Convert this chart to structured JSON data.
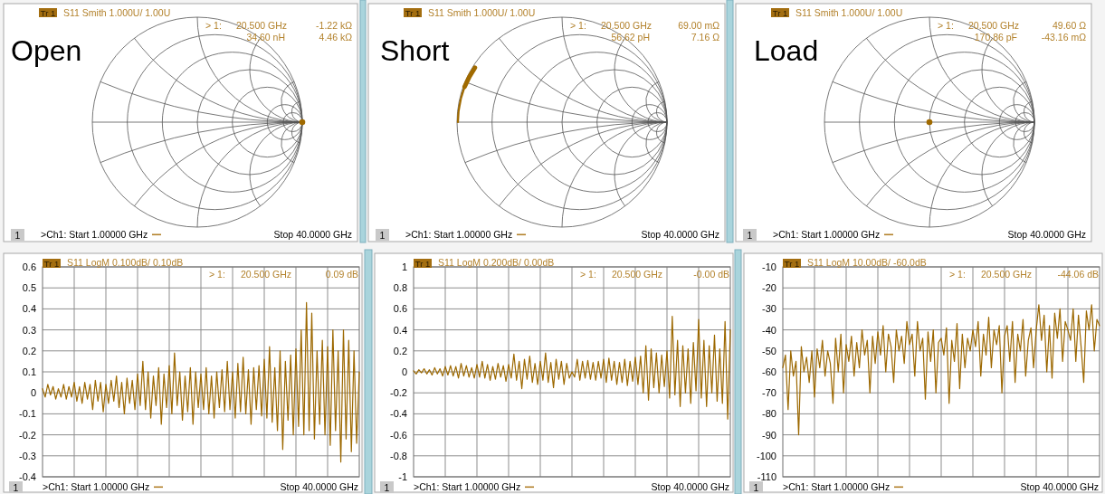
{
  "chart_data": [
    {
      "type": "other",
      "title": "Open",
      "annotations": [
        "Tr 1",
        "S11 Smith 1.000U/ 1.00U",
        "> 1:",
        "20.500 GHz",
        "-1.22 kΩ",
        "34.60 nH",
        "4.46 kΩ",
        "1",
        ">Ch1: Start 1.00000 GHz",
        "Stop 40.0000 GHz"
      ]
    },
    {
      "type": "other",
      "title": "Short",
      "annotations": [
        "Tr 1",
        "S11 Smith 1.000U/ 1.00U",
        "> 1:",
        "20.500 GHz",
        "69.00 mΩ",
        "56.62 pH",
        "7.16 Ω",
        "1",
        ">Ch1: Start 1.00000 GHz",
        "Stop 40.0000 GHz"
      ]
    },
    {
      "type": "other",
      "title": "Load",
      "annotations": [
        "Tr 1",
        "S11 Smith 1.000U/ 1.00U",
        "> 1:",
        "20.500 GHz",
        "49.60 Ω",
        "170.86 pF",
        "-43.16 mΩ",
        "1",
        ">Ch1: Start 1.00000 GHz",
        "Stop 40.0000 GHz"
      ]
    },
    {
      "type": "line",
      "annotations": [
        "Tr 1",
        "S11 LogM 0.100dB/ 0.10dB",
        "> 1:",
        "20.500 GHz",
        "0.09 dB",
        "1",
        ">Ch1: Start 1.00000 GHz",
        "Stop 40.0000 GHz"
      ],
      "categories": [
        null,
        null,
        null,
        null,
        null,
        null,
        null,
        null,
        null,
        null,
        null,
        null,
        null,
        null,
        null,
        null,
        null,
        null,
        null,
        null,
        null,
        null,
        null,
        null,
        null,
        null,
        null,
        null,
        null,
        null,
        null,
        null,
        null,
        null,
        null,
        null,
        null,
        null,
        null,
        null,
        null,
        null,
        null,
        null,
        null,
        null,
        null,
        null,
        null,
        null,
        null,
        null,
        null,
        null,
        null,
        null,
        null,
        null,
        null,
        null,
        null,
        null,
        null,
        null,
        null,
        null,
        null,
        null,
        null,
        null,
        null,
        null,
        null,
        null,
        null,
        null,
        null,
        null,
        null,
        null,
        null,
        null,
        null,
        null,
        null,
        null,
        null,
        null,
        null,
        null,
        null,
        null,
        null,
        null,
        null,
        null,
        null,
        null,
        null,
        null,
        null,
        null,
        null,
        null,
        null,
        null,
        null,
        null,
        null,
        null,
        null,
        null,
        null,
        null,
        null,
        null,
        null,
        null,
        null,
        null,
        null
      ],
      "series": [
        {
          "color": "#9c6800",
          "values": [
            0.02,
            -0.02,
            0.04,
            -0.01,
            0.03,
            -0.03,
            0.02,
            -0.02,
            0.04,
            -0.03,
            0.03,
            -0.02,
            0.05,
            -0.04,
            0.03,
            -0.05,
            0.05,
            -0.03,
            0.04,
            -0.08,
            0.06,
            -0.04,
            0.05,
            -0.09,
            0.04,
            -0.05,
            0.06,
            -0.04,
            0.08,
            -0.07,
            0.05,
            -0.1,
            0.07,
            -0.05,
            0.06,
            -0.08,
            0.09,
            -0.06,
            0.15,
            -0.08,
            0.1,
            -0.12,
            0.08,
            -0.06,
            0.12,
            -0.15,
            0.09,
            -0.07,
            0.13,
            -0.1,
            0.19,
            -0.06,
            0.1,
            -0.13,
            0.08,
            -0.09,
            0.12,
            -0.15,
            0.1,
            -0.07,
            0.09,
            -0.08,
            0.12,
            -0.1,
            0.08,
            -0.12,
            0.1,
            -0.07,
            0.11,
            -0.09,
            0.15,
            -0.08,
            0.1,
            -0.12,
            0.14,
            -0.09,
            0.17,
            -0.1,
            0.11,
            -0.15,
            0.12,
            -0.08,
            0.13,
            -0.11,
            0.16,
            -0.12,
            0.22,
            -0.14,
            0.12,
            -0.18,
            0.2,
            -0.27,
            0.15,
            -0.13,
            0.18,
            -0.2,
            0.21,
            -0.16,
            0.3,
            -0.2,
            0.43,
            -0.18,
            0.38,
            -0.22,
            0.2,
            -0.15,
            0.25,
            -0.2,
            0.22,
            -0.25,
            0.3,
            -0.18,
            0.2,
            -0.33,
            0.3,
            -0.22,
            0.25,
            -0.28,
            0.2,
            -0.24,
            0.1
          ]
        }
      ],
      "ylim": [
        -0.4,
        0.6
      ],
      "yticks": [
        0.6,
        0.5,
        0.4,
        0.3,
        0.2,
        0.1,
        0,
        -0.1,
        -0.2,
        -0.3,
        -0.4
      ],
      "grid": true,
      "tick_labels": "y"
    },
    {
      "type": "line",
      "annotations": [
        "Tr 1",
        "S11 LogM 0.200dB/ 0.00dB",
        "> 1:",
        "20.500 GHz",
        "-0.00 dB",
        "1",
        ">Ch1: Start 1.00000 GHz",
        "Stop 40.0000 GHz"
      ],
      "categories": [
        null,
        null,
        null,
        null,
        null,
        null,
        null,
        null,
        null,
        null,
        null,
        null,
        null,
        null,
        null,
        null,
        null,
        null,
        null,
        null,
        null,
        null,
        null,
        null,
        null,
        null,
        null,
        null,
        null,
        null,
        null,
        null,
        null,
        null,
        null,
        null,
        null,
        null,
        null,
        null,
        null,
        null,
        null,
        null,
        null,
        null,
        null,
        null,
        null,
        null,
        null,
        null,
        null,
        null,
        null,
        null,
        null,
        null,
        null,
        null,
        null,
        null,
        null,
        null,
        null,
        null,
        null,
        null,
        null,
        null,
        null,
        null,
        null,
        null,
        null,
        null,
        null,
        null,
        null,
        null,
        null,
        null,
        null,
        null,
        null,
        null,
        null,
        null,
        null,
        null,
        null,
        null,
        null,
        null,
        null,
        null,
        null,
        null,
        null,
        null,
        null,
        null,
        null,
        null,
        null,
        null,
        null,
        null,
        null,
        null,
        null,
        null,
        null,
        null,
        null,
        null,
        null,
        null,
        null,
        null,
        null
      ],
      "series": [
        {
          "color": "#9c6800",
          "values": [
            0.01,
            -0.02,
            0.02,
            -0.01,
            0.03,
            -0.02,
            0.02,
            -0.03,
            0.04,
            -0.02,
            0.03,
            -0.04,
            0.05,
            -0.03,
            0.06,
            -0.04,
            0.05,
            -0.06,
            0.08,
            -0.04,
            0.06,
            -0.05,
            0.04,
            -0.06,
            0.07,
            -0.05,
            0.1,
            -0.06,
            0.07,
            -0.08,
            0.05,
            -0.07,
            0.08,
            -0.05,
            0.06,
            -0.09,
            0.07,
            -0.06,
            0.17,
            -0.08,
            0.1,
            -0.16,
            0.12,
            -0.07,
            0.15,
            -0.1,
            0.08,
            -0.12,
            0.1,
            -0.08,
            0.18,
            -0.1,
            0.09,
            -0.15,
            0.12,
            -0.07,
            0.1,
            -0.12,
            0.08,
            -0.06,
            0,
            -0.05,
            0.12,
            -0.08,
            0.1,
            -0.06,
            0.11,
            -0.07,
            0.09,
            -0.08,
            0.1,
            -0.06,
            0.12,
            -0.1,
            0.13,
            -0.08,
            0.1,
            -0.12,
            0.09,
            -0.1,
            0.12,
            -0.13,
            0.1,
            -0.09,
            0.14,
            -0.12,
            0.15,
            -0.2,
            0.25,
            -0.27,
            0.22,
            -0.15,
            0.18,
            -0.2,
            0.16,
            -0.14,
            0.2,
            -0.25,
            0.53,
            -0.22,
            0.3,
            -0.33,
            0.25,
            -0.2,
            0.22,
            -0.3,
            0.28,
            -0.18,
            0.5,
            -0.25,
            0.3,
            -0.33,
            0.25,
            -0.2,
            0.35,
            -0.28,
            0.22,
            -0.3,
            0.48,
            -0.45,
            0.4
          ]
        }
      ],
      "ylim": [
        -1,
        1
      ],
      "yticks": [
        1,
        0.8,
        0.6,
        0.4,
        0.2,
        0,
        -0.2,
        -0.4,
        -0.6,
        -0.8,
        -1
      ],
      "grid": true,
      "tick_labels": "y"
    },
    {
      "type": "line",
      "annotations": [
        "Tr 1",
        "S11 LogM 10.00dB/ -60.0dB",
        "> 1:",
        "20.500 GHz",
        "-44.06 dB",
        "1",
        ">Ch1: Start 1.00000 GHz",
        "Stop 40.0000 GHz"
      ],
      "categories": [
        null,
        null,
        null,
        null,
        null,
        null,
        null,
        null,
        null,
        null,
        null,
        null,
        null,
        null,
        null,
        null,
        null,
        null,
        null,
        null,
        null,
        null,
        null,
        null,
        null,
        null,
        null,
        null,
        null,
        null,
        null,
        null,
        null,
        null,
        null,
        null,
        null,
        null,
        null,
        null,
        null,
        null,
        null,
        null,
        null,
        null,
        null,
        null,
        null,
        null,
        null,
        null,
        null,
        null,
        null,
        null,
        null,
        null,
        null,
        null,
        null,
        null,
        null,
        null,
        null,
        null,
        null,
        null,
        null,
        null,
        null,
        null,
        null,
        null,
        null,
        null,
        null,
        null,
        null,
        null,
        null,
        null,
        null,
        null,
        null,
        null,
        null,
        null,
        null,
        null,
        null,
        null,
        null,
        null,
        null,
        null,
        null,
        null,
        null,
        null,
        null,
        null,
        null,
        null,
        null,
        null,
        null,
        null,
        null,
        null,
        null,
        null,
        null,
        null,
        null,
        null,
        null,
        null,
        null,
        null,
        null
      ],
      "series": [
        {
          "color": "#9c6800",
          "values": [
            -58,
            -52,
            -78,
            -50,
            -62,
            -55,
            -90,
            -48,
            -60,
            -53,
            -65,
            -50,
            -72,
            -49,
            -58,
            -45,
            -62,
            -50,
            -56,
            -75,
            -44,
            -60,
            -42,
            -70,
            -47,
            -55,
            -43,
            -62,
            -46,
            -58,
            -40,
            -52,
            -45,
            -70,
            -43,
            -56,
            -41,
            -52,
            -38,
            -60,
            -42,
            -48,
            -65,
            -40,
            -50,
            -43,
            -56,
            -36,
            -47,
            -42,
            -62,
            -36,
            -50,
            -44,
            -73,
            -41,
            -55,
            -40,
            -70,
            -46,
            -44,
            -52,
            -39,
            -75,
            -45,
            -55,
            -37,
            -68,
            -42,
            -58,
            -44,
            -50,
            -40,
            -48,
            -36,
            -62,
            -42,
            -52,
            -34,
            -58,
            -40,
            -47,
            -38,
            -70,
            -43,
            -38,
            -55,
            -36,
            -65,
            -42,
            -50,
            -35,
            -62,
            -45,
            -39,
            -58,
            -40,
            -28,
            -45,
            -33,
            -60,
            -38,
            -63,
            -32,
            -44,
            -30,
            -55,
            -36,
            -40,
            -45,
            -30,
            -55,
            -33,
            -48,
            -65,
            -31,
            -40,
            -28,
            -50,
            -35,
            -38
          ]
        }
      ],
      "ylim": [
        -110,
        -10
      ],
      "yticks": [
        -10,
        -20,
        -30,
        -40,
        -50,
        -60,
        -70,
        -80,
        -90,
        -100,
        -110
      ],
      "grid": true,
      "tick_labels": "y"
    }
  ]
}
